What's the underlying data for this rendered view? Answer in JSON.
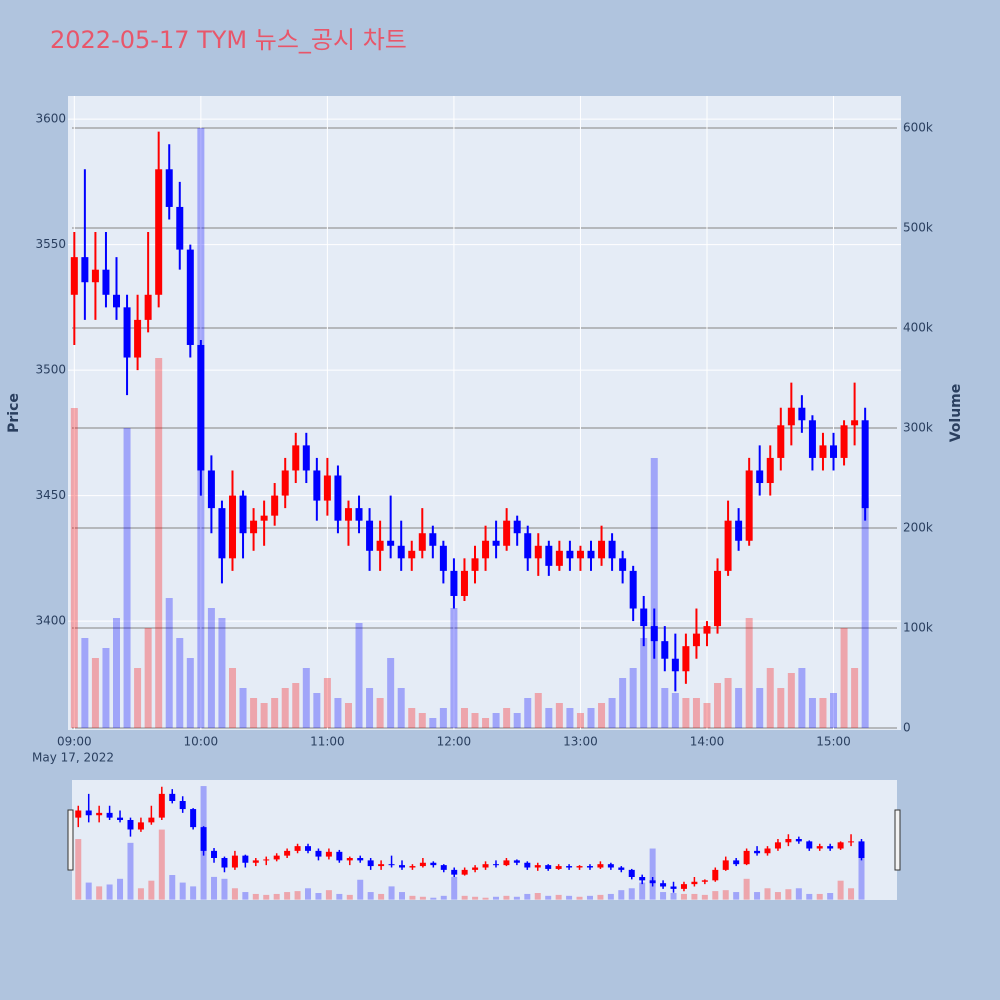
{
  "chart_data": {
    "type": "candlestick",
    "title": "2022-05-17 TYM 뉴스_공시 차트",
    "y_label": "Price",
    "y2_label": "Volume",
    "x_date_label": "May 17, 2022",
    "increasing_color": "#ff0000",
    "decreasing_color": "#0000ff",
    "x": [
      "2022-05-17 09:00",
      "2022-05-17 09:05",
      "2022-05-17 09:10",
      "2022-05-17 09:15",
      "2022-05-17 09:20",
      "2022-05-17 09:25",
      "2022-05-17 09:30",
      "2022-05-17 09:35",
      "2022-05-17 09:40",
      "2022-05-17 09:45",
      "2022-05-17 09:50",
      "2022-05-17 09:55",
      "2022-05-17 10:00",
      "2022-05-17 10:05",
      "2022-05-17 10:10",
      "2022-05-17 10:15",
      "2022-05-17 10:20",
      "2022-05-17 10:25",
      "2022-05-17 10:30",
      "2022-05-17 10:35",
      "2022-05-17 10:40",
      "2022-05-17 10:45",
      "2022-05-17 10:50",
      "2022-05-17 10:55",
      "2022-05-17 11:00",
      "2022-05-17 11:05",
      "2022-05-17 11:10",
      "2022-05-17 11:15",
      "2022-05-17 11:20",
      "2022-05-17 11:25",
      "2022-05-17 11:30",
      "2022-05-17 11:35",
      "2022-05-17 11:40",
      "2022-05-17 11:45",
      "2022-05-17 11:50",
      "2022-05-17 11:55",
      "2022-05-17 12:00",
      "2022-05-17 12:05",
      "2022-05-17 12:10",
      "2022-05-17 12:15",
      "2022-05-17 12:20",
      "2022-05-17 12:25",
      "2022-05-17 12:30",
      "2022-05-17 12:35",
      "2022-05-17 12:40",
      "2022-05-17 12:45",
      "2022-05-17 12:50",
      "2022-05-17 12:55",
      "2022-05-17 13:00",
      "2022-05-17 13:05",
      "2022-05-17 13:10",
      "2022-05-17 13:15",
      "2022-05-17 13:20",
      "2022-05-17 13:25",
      "2022-05-17 13:30",
      "2022-05-17 13:35",
      "2022-05-17 13:40",
      "2022-05-17 13:45",
      "2022-05-17 13:50",
      "2022-05-17 13:55",
      "2022-05-17 14:00",
      "2022-05-17 14:05",
      "2022-05-17 14:10",
      "2022-05-17 14:15",
      "2022-05-17 14:20",
      "2022-05-17 14:25",
      "2022-05-17 14:30",
      "2022-05-17 14:35",
      "2022-05-17 14:40",
      "2022-05-17 14:45",
      "2022-05-17 14:50",
      "2022-05-17 14:55",
      "2022-05-17 15:00",
      "2022-05-17 15:05",
      "2022-05-17 15:10",
      "2022-05-17 15:15"
    ],
    "open": [
      3530,
      3545,
      3535,
      3540,
      3530,
      3525,
      3505,
      3520,
      3530,
      3580,
      3565,
      3548,
      3510,
      3460,
      3445,
      3425,
      3450,
      3435,
      3440,
      3442,
      3450,
      3460,
      3470,
      3460,
      3448,
      3458,
      3440,
      3445,
      3440,
      3428,
      3432,
      3430,
      3425,
      3428,
      3435,
      3430,
      3420,
      3410,
      3420,
      3425,
      3432,
      3430,
      3440,
      3435,
      3425,
      3430,
      3422,
      3428,
      3425,
      3428,
      3425,
      3432,
      3425,
      3420,
      3405,
      3398,
      3392,
      3385,
      3380,
      3390,
      3395,
      3398,
      3420,
      3440,
      3432,
      3460,
      3455,
      3465,
      3478,
      3485,
      3480,
      3465,
      3470,
      3465,
      3478,
      3480
    ],
    "high": [
      3555,
      3580,
      3555,
      3555,
      3545,
      3530,
      3530,
      3555,
      3595,
      3590,
      3575,
      3550,
      3512,
      3466,
      3448,
      3460,
      3452,
      3445,
      3448,
      3455,
      3465,
      3475,
      3475,
      3465,
      3465,
      3462,
      3448,
      3450,
      3445,
      3440,
      3450,
      3440,
      3432,
      3445,
      3438,
      3432,
      3425,
      3425,
      3430,
      3438,
      3440,
      3445,
      3442,
      3438,
      3435,
      3432,
      3432,
      3432,
      3430,
      3432,
      3438,
      3435,
      3428,
      3422,
      3410,
      3405,
      3398,
      3395,
      3395,
      3405,
      3400,
      3425,
      3448,
      3445,
      3465,
      3470,
      3470,
      3485,
      3495,
      3490,
      3482,
      3475,
      3475,
      3480,
      3495,
      3485
    ],
    "low": [
      3510,
      3520,
      3520,
      3525,
      3520,
      3490,
      3500,
      3515,
      3525,
      3560,
      3540,
      3505,
      3450,
      3435,
      3415,
      3420,
      3425,
      3428,
      3430,
      3438,
      3445,
      3455,
      3455,
      3440,
      3442,
      3435,
      3430,
      3435,
      3420,
      3420,
      3425,
      3420,
      3420,
      3425,
      3425,
      3415,
      3405,
      3408,
      3415,
      3420,
      3425,
      3428,
      3430,
      3420,
      3418,
      3418,
      3420,
      3420,
      3420,
      3420,
      3422,
      3420,
      3415,
      3400,
      3390,
      3385,
      3380,
      3372,
      3375,
      3385,
      3390,
      3395,
      3418,
      3428,
      3430,
      3450,
      3450,
      3460,
      3470,
      3475,
      3460,
      3460,
      3460,
      3462,
      3470,
      3440
    ],
    "close": [
      3545,
      3535,
      3540,
      3530,
      3525,
      3505,
      3520,
      3530,
      3580,
      3565,
      3548,
      3510,
      3460,
      3445,
      3425,
      3450,
      3435,
      3440,
      3442,
      3450,
      3460,
      3470,
      3460,
      3448,
      3458,
      3440,
      3445,
      3440,
      3428,
      3432,
      3430,
      3425,
      3428,
      3435,
      3430,
      3420,
      3410,
      3420,
      3425,
      3432,
      3430,
      3440,
      3435,
      3425,
      3430,
      3422,
      3428,
      3425,
      3428,
      3425,
      3432,
      3425,
      3420,
      3405,
      3398,
      3392,
      3385,
      3380,
      3390,
      3395,
      3398,
      3420,
      3440,
      3432,
      3460,
      3455,
      3465,
      3478,
      3485,
      3480,
      3465,
      3470,
      3465,
      3478,
      3480,
      3445
    ],
    "volume": [
      320000,
      90000,
      70000,
      80000,
      110000,
      300000,
      60000,
      100000,
      370000,
      130000,
      90000,
      70000,
      600000,
      120000,
      110000,
      60000,
      40000,
      30000,
      25000,
      30000,
      40000,
      45000,
      60000,
      35000,
      50000,
      30000,
      25000,
      105000,
      40000,
      30000,
      70000,
      40000,
      20000,
      15000,
      10000,
      20000,
      120000,
      20000,
      15000,
      10000,
      15000,
      20000,
      15000,
      30000,
      35000,
      20000,
      25000,
      20000,
      15000,
      20000,
      25000,
      30000,
      50000,
      60000,
      90000,
      270000,
      40000,
      35000,
      30000,
      30000,
      25000,
      45000,
      50000,
      40000,
      110000,
      40000,
      60000,
      40000,
      55000,
      60000,
      30000,
      30000,
      35000,
      100000,
      60000,
      230000
    ],
    "xlim": [
      "2022-05-17 08:57",
      "2022-05-17 15:32"
    ],
    "xticks": [
      {
        "value": "2022-05-17 09:00",
        "label": "09:00"
      },
      {
        "value": "2022-05-17 10:00",
        "label": "10:00"
      },
      {
        "value": "2022-05-17 11:00",
        "label": "11:00"
      },
      {
        "value": "2022-05-17 12:00",
        "label": "12:00"
      },
      {
        "value": "2022-05-17 13:00",
        "label": "13:00"
      },
      {
        "value": "2022-05-17 14:00",
        "label": "14:00"
      },
      {
        "value": "2022-05-17 15:00",
        "label": "15:00"
      }
    ],
    "ylim": [
      3356.6,
      3609.2
    ],
    "yticks": [
      3400,
      3450,
      3500,
      3550,
      3600
    ],
    "y2lim": [
      -2000,
      632000
    ],
    "y2ticks": [
      0,
      {
        "value": 100000,
        "label": "100k"
      },
      {
        "value": 200000,
        "label": "200k"
      },
      {
        "value": 300000,
        "label": "300k"
      },
      {
        "value": 400000,
        "label": "400k"
      },
      {
        "value": 500000,
        "label": "500k"
      },
      {
        "value": 600000,
        "label": "600k"
      }
    ],
    "grid": true,
    "range_slider": true
  }
}
